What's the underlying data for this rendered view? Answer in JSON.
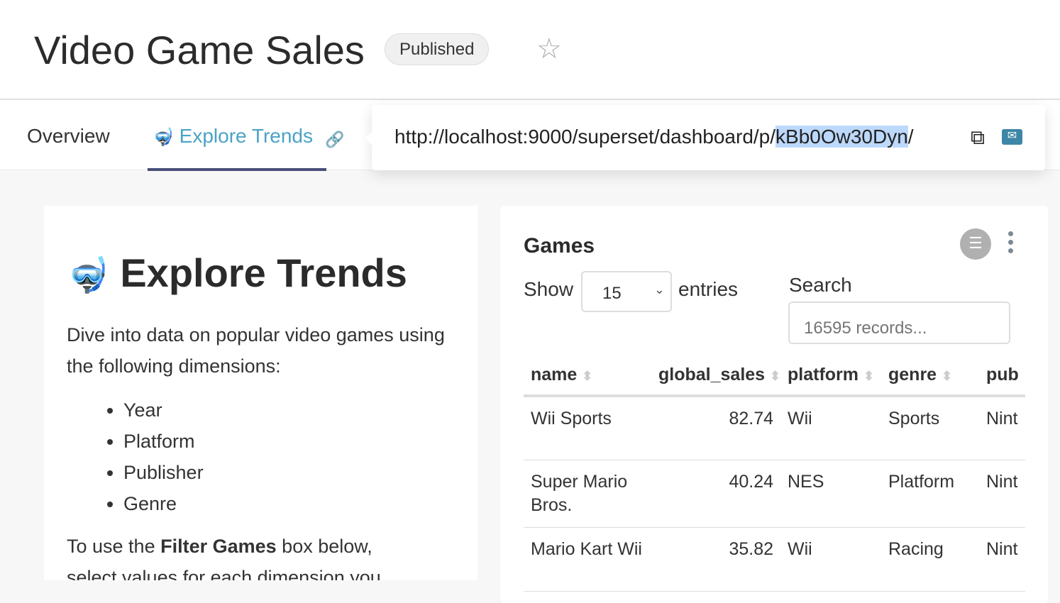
{
  "header": {
    "title": "Video Game Sales",
    "status": "Published",
    "favorite_icon": "star-icon"
  },
  "tabs": [
    {
      "label": "Overview"
    },
    {
      "label": "Explore Trends",
      "icon": "diving-mask-emoji"
    }
  ],
  "share": {
    "url_prefix": "http://localhost:9000/superset/dashboard/p/",
    "url_key": "kBb0Ow30Dyn",
    "url_suffix": "/",
    "copy_icon": "copy-icon",
    "email_icon": "envelope-icon"
  },
  "markdown": {
    "title": "Explore Trends",
    "intro": "Dive into data on popular video games using the following dimensions:",
    "dimensions": [
      "Year",
      "Platform",
      "Publisher",
      "Genre"
    ],
    "filter_pre": "To use the ",
    "filter_bold": "Filter Games",
    "filter_post": " box below,",
    "cut_line": "select values for each dimension you"
  },
  "table": {
    "title": "Games",
    "show": "Show",
    "page_size": "15",
    "entries": "entries",
    "search_label": "Search",
    "search_placeholder": "16595 records...",
    "columns": [
      "name",
      "global_sales",
      "platform",
      "genre",
      "pub"
    ],
    "rows": [
      [
        "Wii Sports",
        "82.74",
        "Wii",
        "Sports",
        "Nint"
      ],
      [
        "Super Mario Bros.",
        "40.24",
        "NES",
        "Platform",
        "Nint"
      ],
      [
        "Mario Kart Wii",
        "35.82",
        "Wii",
        "Racing",
        "Nint"
      ]
    ]
  }
}
